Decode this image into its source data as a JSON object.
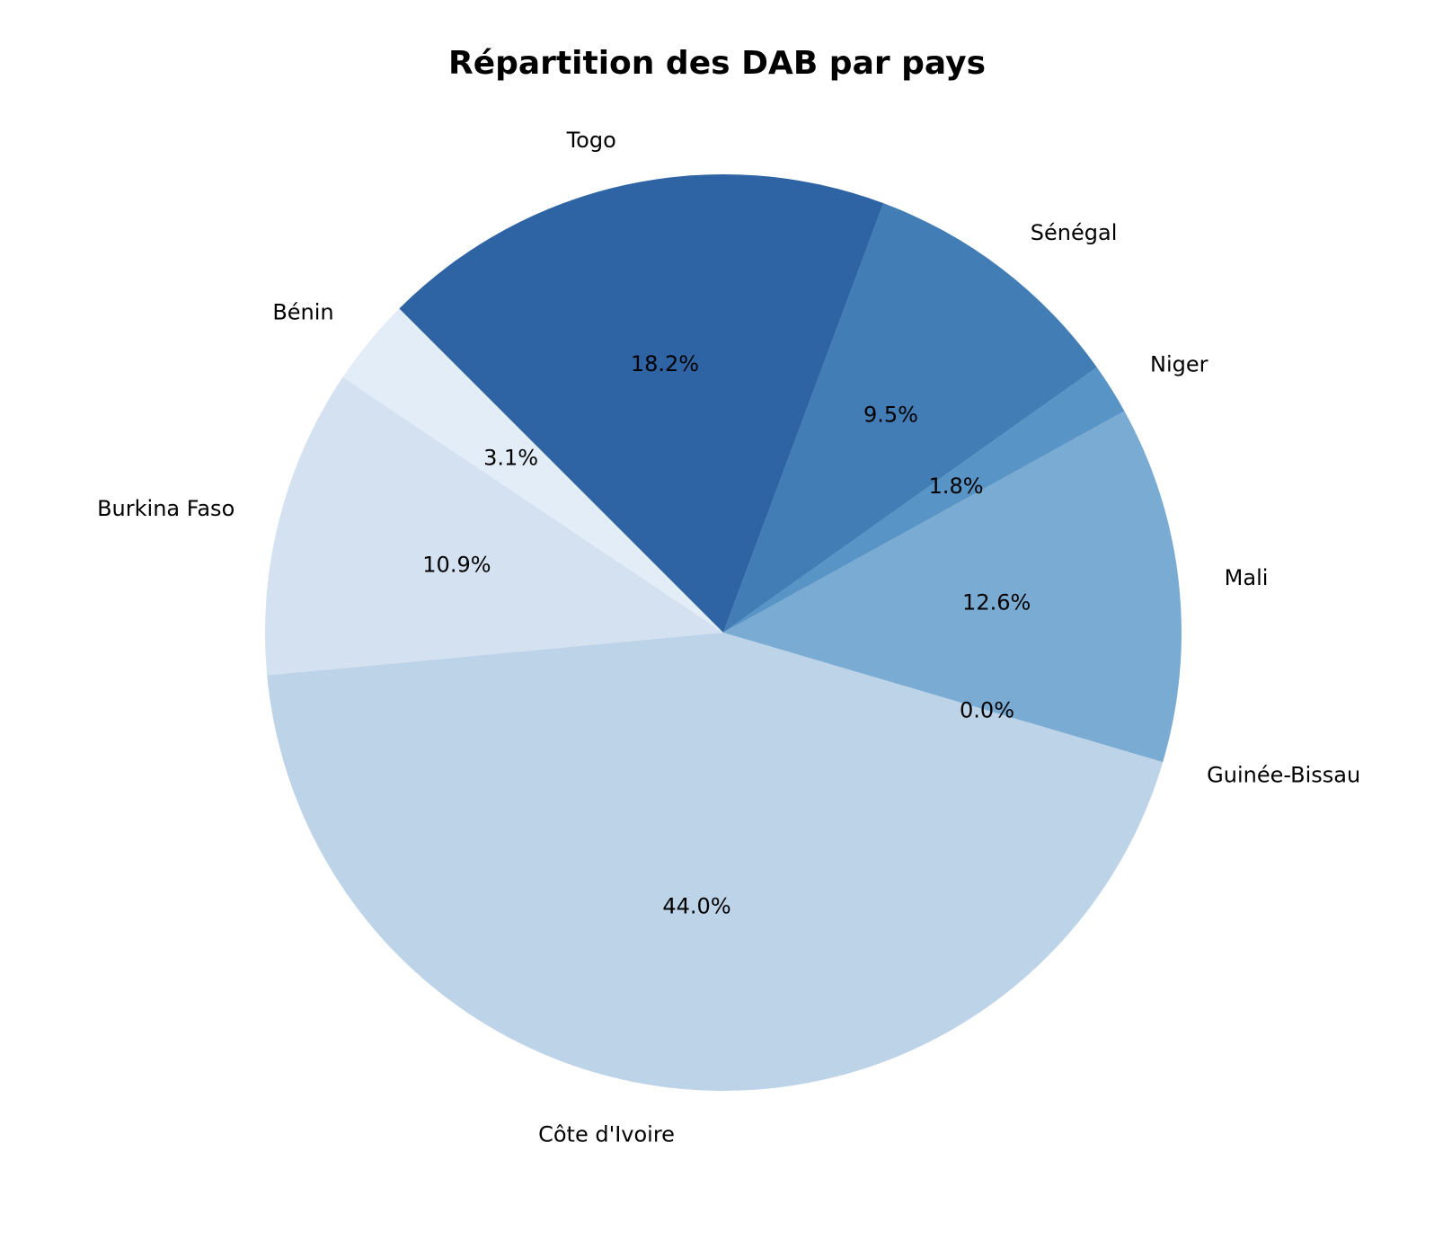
{
  "chart_data": {
    "type": "pie",
    "title": "Répartition des DAB par pays",
    "slices": [
      {
        "label": "Bénin",
        "value": 3.1,
        "pct_label": "3.1%",
        "color": "#e3edf8"
      },
      {
        "label": "Burkina Faso",
        "value": 10.9,
        "pct_label": "10.9%",
        "color": "#d3e1f1"
      },
      {
        "label": "Côte d'Ivoire",
        "value": 44.0,
        "pct_label": "44.0%",
        "color": "#bdd3e8"
      },
      {
        "label": "Guinée-Bissau",
        "value": 0.0,
        "pct_label": "0.0%",
        "color": "#a0c4df"
      },
      {
        "label": "Mali",
        "value": 12.6,
        "pct_label": "12.6%",
        "color": "#7aacd3"
      },
      {
        "label": "Niger",
        "value": 1.8,
        "pct_label": "1.8%",
        "color": "#5894c5"
      },
      {
        "label": "Sénégal",
        "value": 9.5,
        "pct_label": "9.5%",
        "color": "#427db6"
      },
      {
        "label": "Togo",
        "value": 18.2,
        "pct_label": "18.2%",
        "color": "#2e63a4"
      }
    ],
    "start_angle_deg": 135,
    "direction": "counterclockwise",
    "legend": "none"
  }
}
